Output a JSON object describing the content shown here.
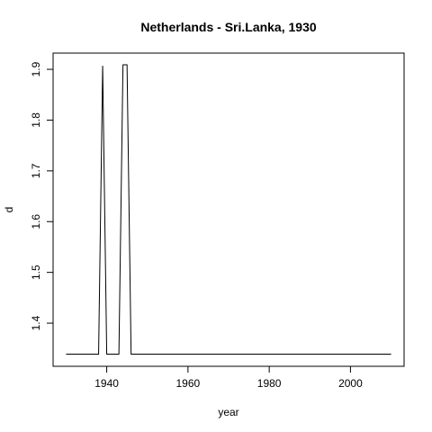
{
  "chart_data": {
    "type": "line",
    "title": "Netherlands - Sri.Lanka, 1930",
    "xlabel": "year",
    "ylabel": "d",
    "xlim": [
      1926.8,
      2013.2
    ],
    "ylim": [
      1.315,
      1.932
    ],
    "x_ticks": [
      1940,
      1960,
      1980,
      2000
    ],
    "y_ticks": [
      1.4,
      1.5,
      1.6,
      1.7,
      1.8,
      1.9
    ],
    "grid": false,
    "legend": "none",
    "series": [
      {
        "color": "#000000",
        "points": [
          [
            1930,
            1.339
          ],
          [
            1938,
            1.339
          ],
          [
            1939,
            1.907
          ],
          [
            1940,
            1.339
          ],
          [
            1943,
            1.339
          ],
          [
            1944,
            1.909
          ],
          [
            1945,
            1.909
          ],
          [
            1946,
            1.339
          ],
          [
            2010,
            1.339
          ]
        ]
      }
    ]
  }
}
